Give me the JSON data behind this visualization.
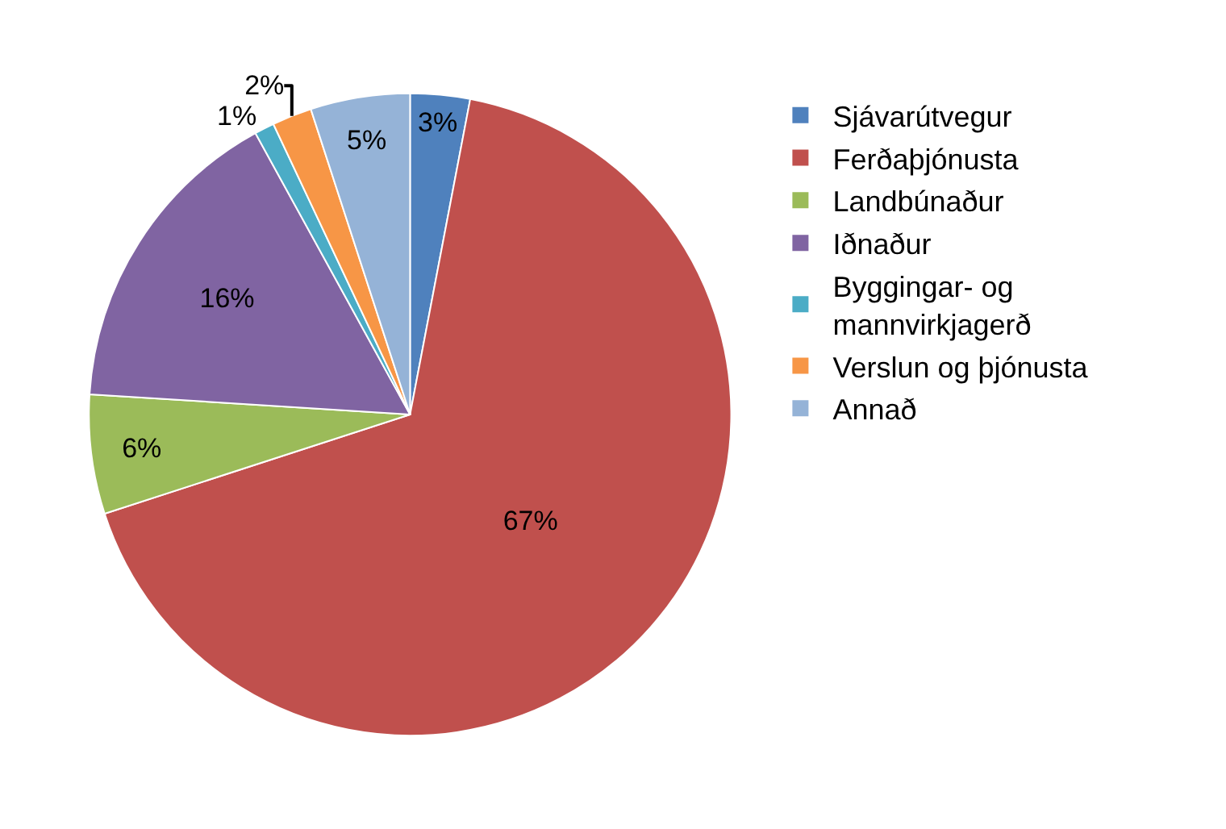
{
  "chart_data": {
    "type": "pie",
    "categories": [
      "Sjávarútvegur",
      "Ferðaþjónusta",
      "Landbúnaður",
      "Iðnaður",
      "Byggingar- og mannvirkjagerð",
      "Verslun og þjónusta",
      "Annað"
    ],
    "values": [
      3,
      67,
      6,
      16,
      1,
      2,
      5
    ],
    "value_labels": [
      "3%",
      "67%",
      "6%",
      "16%",
      "1%",
      "2%",
      "5%"
    ],
    "colors": [
      "#4f81bd",
      "#c0504d",
      "#9bbb59",
      "#8064a2",
      "#4bacc6",
      "#f79646",
      "#95b3d7"
    ],
    "legend": "right"
  }
}
